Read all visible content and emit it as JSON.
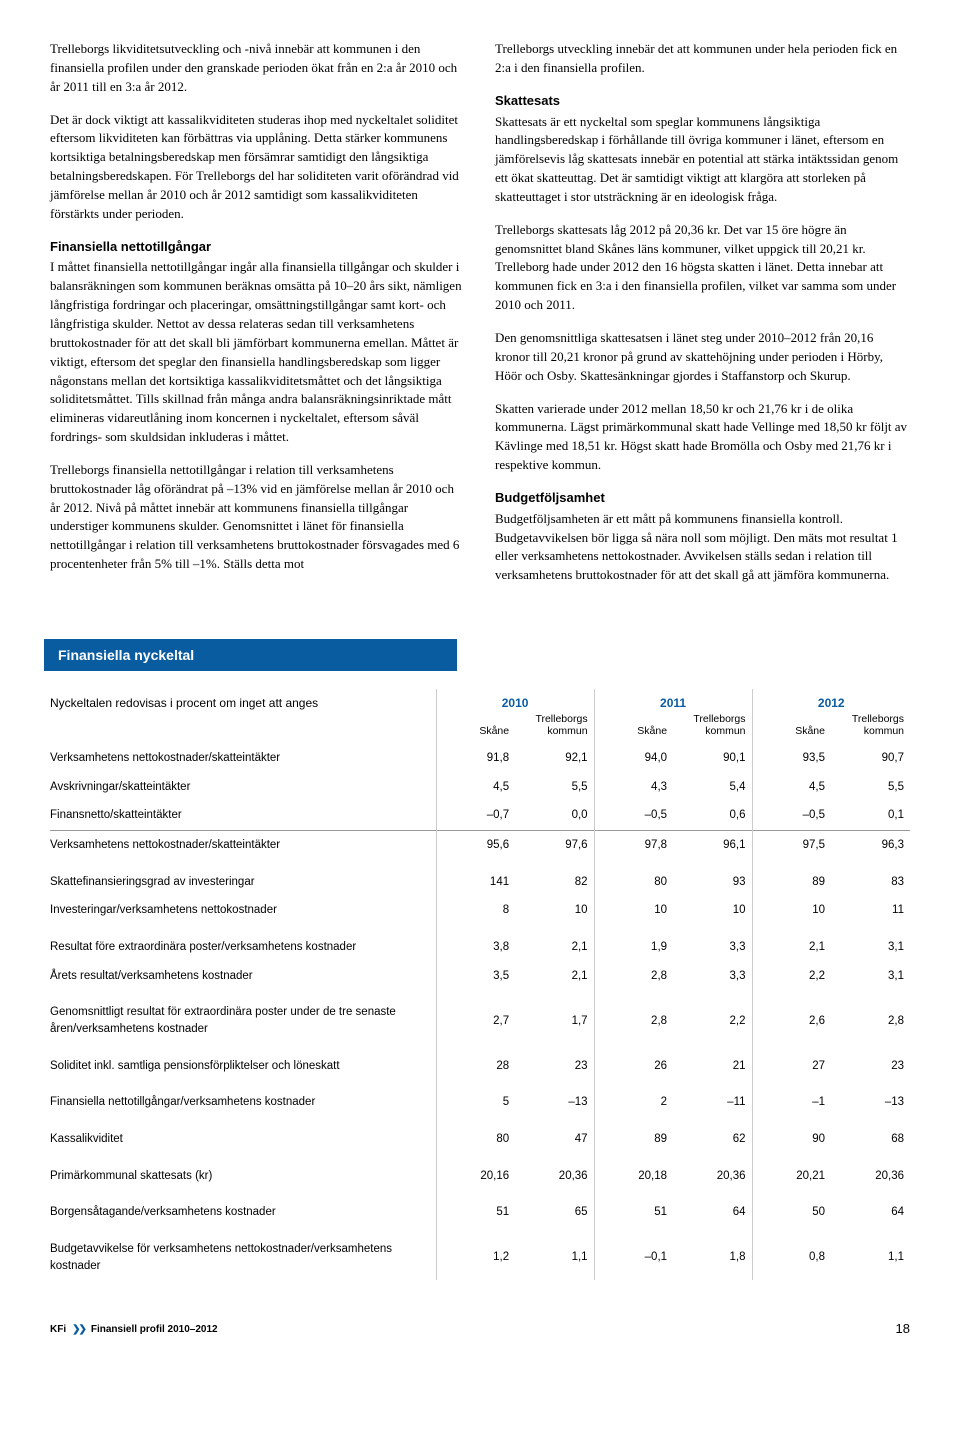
{
  "left_col": {
    "p1": "Trelleborgs likviditetsutveckling och -nivå innebär att kommunen i den finansiella profilen under den granskade perioden ökat från en 2:a år 2010 och år 2011 till en 3:a år 2012.",
    "p2": "Det är dock viktigt att kassalikviditeten studeras ihop med nyckeltalet soliditet eftersom likviditeten kan förbättras via upplåning. Detta stärker kommunens kortsiktiga betalningsberedskap men försämrar samtidigt den långsiktiga betalningsberedskapen. För Trelleborgs del har soliditeten varit oförändrad vid jämförelse mellan år 2010 och år 2012 samtidigt som kassalikviditeten förstärkts under perioden.",
    "h1": "Finansiella nettotillgångar",
    "p3": "I måttet finansiella nettotillgångar ingår alla finansiella tillgångar och skulder i balansräkningen som kommunen beräknas omsätta på 10–20 års sikt, nämligen långfristiga fordringar och placeringar, omsättningstillgångar samt kort- och långfristiga skulder. Nettot av dessa relateras sedan till verksamhetens bruttokostnader för att det skall bli jämförbart kommunerna emellan. Måttet är viktigt, eftersom det speglar den finansiella handlingsberedskap som ligger någonstans mellan det kortsiktiga kassalikviditetsmåttet och det långsiktiga soliditetsmåttet. Tills skillnad från många andra balansräkningsinriktade mått elimineras vidareutlåning inom koncernen i nyckeltalet, eftersom såväl fordrings- som skuldsidan inkluderas i måttet.",
    "p4": "Trelleborgs finansiella nettotillgångar i relation till verksamhetens bruttokostnader låg oförändrat på –13% vid en jämförelse mellan år 2010 och år 2012. Nivå på måttet innebär att kommunens finansiella tillgångar understiger kommunens skulder. Genomsnittet i länet för finansiella nettotillgångar i relation till verksamhetens bruttokostnader försvagades med 6 procentenheter från 5% till –1%. Ställs detta mot"
  },
  "right_col": {
    "p1": "Trelleborgs utveckling innebär det att kommunen under hela perioden fick en 2:a i den finansiella profilen.",
    "h1": "Skattesats",
    "p2": "Skattesats är ett nyckeltal som speglar kommunens långsiktiga handlingsberedskap i förhållande till övriga kommuner i länet, eftersom en jämförelsevis låg skattesats innebär en potential att stärka intäktssidan genom ett ökat skatteuttag. Det är samtidigt viktigt att klargöra att storleken på skatteuttaget i stor utsträckning är en ideologisk fråga.",
    "p3": "Trelleborgs skattesats låg 2012 på 20,36 kr. Det var 15 öre högre än genomsnittet bland Skånes läns kommuner, vilket uppgick till 20,21 kr. Trelleborg hade under 2012 den 16 högsta skatten i länet. Detta innebar att kommunen fick en 3:a i den finansiella profilen, vilket var samma som under 2010 och 2011.",
    "p4": "Den genomsnittliga skattesatsen i länet steg under 2010–2012 från 20,16 kronor till 20,21 kronor på grund av skattehöjning under perioden i Hörby, Höör och Osby. Skattesänkningar gjordes i Staffanstorp och Skurup.",
    "p5": "Skatten varierade under 2012 mellan 18,50 kr och 21,76 kr i de olika kommunerna. Lägst primärkommunal skatt hade Vellinge med 18,50 kr följt av Kävlinge med 18,51 kr. Högst skatt hade Bromölla och Osby med 21,76 kr i respektive kommun.",
    "h2": "Budgetföljsamhet",
    "p6": "Budgetföljsamheten är ett mått på kommunens finansiella kontroll. Budgetavvikelsen bör ligga så nära noll som möjligt. Den mäts mot resultat 1 eller verksamhetens nettokostnader. Avvikelsen ställs sedan i relation till verksamhetens bruttokostnader för att det skall gå att jämföra kommunerna."
  },
  "table": {
    "title": "Finansiella nyckeltal",
    "note": "Nyckeltalen redovisas i procent om inget att anges",
    "years": [
      "2010",
      "2011",
      "2012"
    ],
    "col_a": "Skåne",
    "col_b_l1": "Trelleborgs",
    "col_b_l2": "kommun",
    "rows": [
      {
        "label": "Verksamhetens nettokostnader/skatteintäkter",
        "v": [
          "91,8",
          "92,1",
          "94,0",
          "90,1",
          "93,5",
          "90,7"
        ]
      },
      {
        "label": "Avskrivningar/skatteintäkter",
        "v": [
          "4,5",
          "5,5",
          "4,3",
          "5,4",
          "4,5",
          "5,5"
        ]
      },
      {
        "label": "Finansnetto/skatteintäkter",
        "v": [
          "–0,7",
          "0,0",
          "–0,5",
          "0,6",
          "–0,5",
          "0,1"
        ]
      },
      {
        "label": "Verksamhetens nettokostnader/skatteintäkter",
        "v": [
          "95,6",
          "97,6",
          "97,8",
          "96,1",
          "97,5",
          "96,3"
        ],
        "hr": true
      },
      {
        "label": "Skattefinansieringsgrad av investeringar",
        "v": [
          "141",
          "82",
          "80",
          "93",
          "89",
          "83"
        ],
        "pad": true
      },
      {
        "label": "Investeringar/verksamhetens nettokostnader",
        "v": [
          "8",
          "10",
          "10",
          "10",
          "10",
          "11"
        ]
      },
      {
        "label": "Resultat före extraordinära poster/verksamhetens kostnader",
        "v": [
          "3,8",
          "2,1",
          "1,9",
          "3,3",
          "2,1",
          "3,1"
        ],
        "pad": true
      },
      {
        "label": "Årets resultat/verksamhetens kostnader",
        "v": [
          "3,5",
          "2,1",
          "2,8",
          "3,3",
          "2,2",
          "3,1"
        ]
      },
      {
        "label": "Genomsnittligt resultat för extraordinära poster under de tre senaste åren/verksamhetens kostnader",
        "v": [
          "2,7",
          "1,7",
          "2,8",
          "2,2",
          "2,6",
          "2,8"
        ],
        "pad": true
      },
      {
        "label": "Soliditet inkl. samtliga pensionsförpliktelser och löneskatt",
        "v": [
          "28",
          "23",
          "26",
          "21",
          "27",
          "23"
        ],
        "pad": true
      },
      {
        "label": "Finansiella nettotillgångar/verksamhetens kostnader",
        "v": [
          "5",
          "–13",
          "2",
          "–11",
          "–1",
          "–13"
        ],
        "pad": true
      },
      {
        "label": "Kassalikviditet",
        "v": [
          "80",
          "47",
          "89",
          "62",
          "90",
          "68"
        ],
        "pad": true
      },
      {
        "label": "Primärkommunal skattesats (kr)",
        "v": [
          "20,16",
          "20,36",
          "20,18",
          "20,36",
          "20,21",
          "20,36"
        ],
        "pad": true
      },
      {
        "label": "Borgensåtagande/verksamhetens kostnader",
        "v": [
          "51",
          "65",
          "51",
          "64",
          "50",
          "64"
        ],
        "pad": true
      },
      {
        "label": "Budgetavvikelse för verksamhetens nettokostnader/verksamhetens kostnader",
        "v": [
          "1,2",
          "1,1",
          "–0,1",
          "1,8",
          "0,8",
          "1,1"
        ],
        "pad": true
      }
    ]
  },
  "footer": {
    "kfi": "KFi",
    "chev": "❯❯",
    "title": "Finansiell profil 2010–2012",
    "page": "18"
  }
}
